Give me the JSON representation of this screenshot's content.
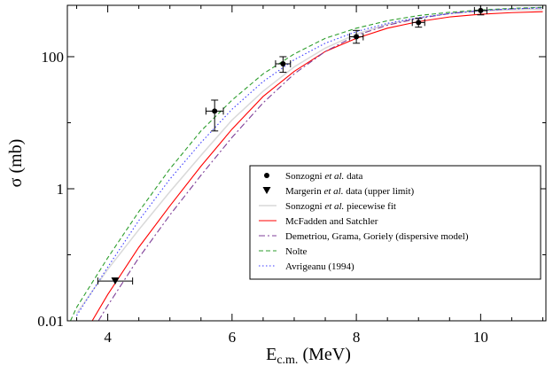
{
  "chart_data": {
    "type": "scatter",
    "title": "",
    "xlabel": "E_c.m. (MeV)",
    "xlabel_main": "E",
    "xlabel_sub": "c.m.",
    "xlabel_tail": " (MeV)",
    "ylabel": "σ (mb)",
    "xlim": [
      3.35,
      11.05
    ],
    "ylim": [
      0.01,
      600
    ],
    "yscale": "log",
    "grid": false,
    "legend_position": "center-right",
    "x_ticks": [
      {
        "value": 4,
        "label": "4"
      },
      {
        "value": 6,
        "label": "6"
      },
      {
        "value": 8,
        "label": "8"
      },
      {
        "value": 10,
        "label": "10"
      }
    ],
    "y_ticks": [
      {
        "value": 0.01,
        "label": "0.01"
      },
      {
        "value": 1,
        "label": "1"
      },
      {
        "value": 100,
        "label": "100"
      }
    ],
    "series": [
      {
        "name": "Sonzogni et al. data",
        "name_pre": "Sonzogni ",
        "name_it": "et al.",
        "name_post": " data",
        "kind": "points",
        "marker": "circle",
        "color": "#000000",
        "points": [
          {
            "x": 5.72,
            "y": 15,
            "xerr": 0.14,
            "ylo": 7.5,
            "yhi": 22
          },
          {
            "x": 6.82,
            "y": 78,
            "xerr": 0.12,
            "ylo": 58,
            "yhi": 100
          },
          {
            "x": 8.0,
            "y": 200,
            "xerr": 0.11,
            "ylo": 160,
            "yhi": 250
          },
          {
            "x": 9.0,
            "y": 330,
            "xerr": 0.1,
            "ylo": 280,
            "yhi": 380
          },
          {
            "x": 10.0,
            "y": 500,
            "xerr": 0.1,
            "ylo": 430,
            "yhi": 600
          }
        ]
      },
      {
        "name": "Margerin et al. data (upper limit)",
        "name_pre": "Margerin ",
        "name_it": "et al.",
        "name_post": " data (upper limit)",
        "kind": "points",
        "marker": "triangle-down",
        "color": "#000000",
        "points": [
          {
            "x": 4.12,
            "y": 0.04,
            "xerr": 0.28
          }
        ]
      },
      {
        "name": "Sonzogni et al. piecewise fit",
        "name_pre": "Sonzogni ",
        "name_it": "et al.",
        "name_post": " piecewise fit",
        "kind": "line",
        "color": "#d9d9d9",
        "dash": "",
        "x": [
          3.5,
          4.0,
          4.5,
          5.0,
          5.5,
          6.0,
          6.5,
          7.0,
          7.5,
          8.0,
          8.5,
          9.0,
          9.5,
          10.0,
          10.5,
          11.0
        ],
        "y": [
          0.013,
          0.06,
          0.24,
          0.9,
          3.2,
          11,
          30,
          70,
          135,
          220,
          310,
          390,
          450,
          490,
          510,
          520
        ]
      },
      {
        "name": "McFadden and Satchler",
        "kind": "line",
        "color": "#ff0000",
        "dash": "",
        "x": [
          3.75,
          4.0,
          4.5,
          5.0,
          5.5,
          6.0,
          6.5,
          7.0,
          7.5,
          8.0,
          8.5,
          9.0,
          9.5,
          10.0,
          10.5,
          11.0
        ],
        "y": [
          0.01,
          0.025,
          0.13,
          0.55,
          2.2,
          8.0,
          25,
          60,
          120,
          190,
          270,
          340,
          400,
          440,
          465,
          480
        ]
      },
      {
        "name": "Demetriou, Grama, Goriely (dispersive model)",
        "kind": "line",
        "color": "#7f3f98",
        "dash": "7,3,2,3",
        "x": [
          3.85,
          4.0,
          4.5,
          5.0,
          5.5,
          6.0,
          6.5,
          7.0,
          7.5,
          8.0,
          8.5,
          9.0,
          9.5,
          10.0,
          10.5,
          11.0
        ],
        "y": [
          0.01,
          0.017,
          0.09,
          0.4,
          1.6,
          6.0,
          20,
          55,
          120,
          210,
          300,
          380,
          450,
          500,
          530,
          550
        ]
      },
      {
        "name": "Nolte",
        "kind": "line",
        "color": "#2e9e2e",
        "dash": "5,3",
        "x": [
          3.4,
          3.5,
          4.0,
          4.5,
          5.0,
          5.5,
          6.0,
          6.5,
          7.0,
          7.5,
          8.0,
          8.5,
          9.0,
          9.5,
          10.0,
          10.5,
          11.0
        ],
        "y": [
          0.01,
          0.016,
          0.09,
          0.45,
          2.0,
          7.5,
          22,
          55,
          110,
          190,
          270,
          350,
          420,
          470,
          510,
          540,
          560
        ]
      },
      {
        "name": "Avrigeanu (1994)",
        "kind": "line",
        "color": "#3b3bff",
        "dash": "1.5,2.5",
        "x": [
          3.5,
          4.0,
          4.5,
          5.0,
          5.5,
          6.0,
          6.5,
          7.0,
          7.5,
          8.0,
          8.5,
          9.0,
          9.5,
          10.0,
          10.5,
          11.0
        ],
        "y": [
          0.012,
          0.065,
          0.33,
          1.4,
          5.0,
          16,
          42,
          90,
          160,
          240,
          320,
          390,
          450,
          500,
          530,
          550
        ]
      }
    ]
  }
}
